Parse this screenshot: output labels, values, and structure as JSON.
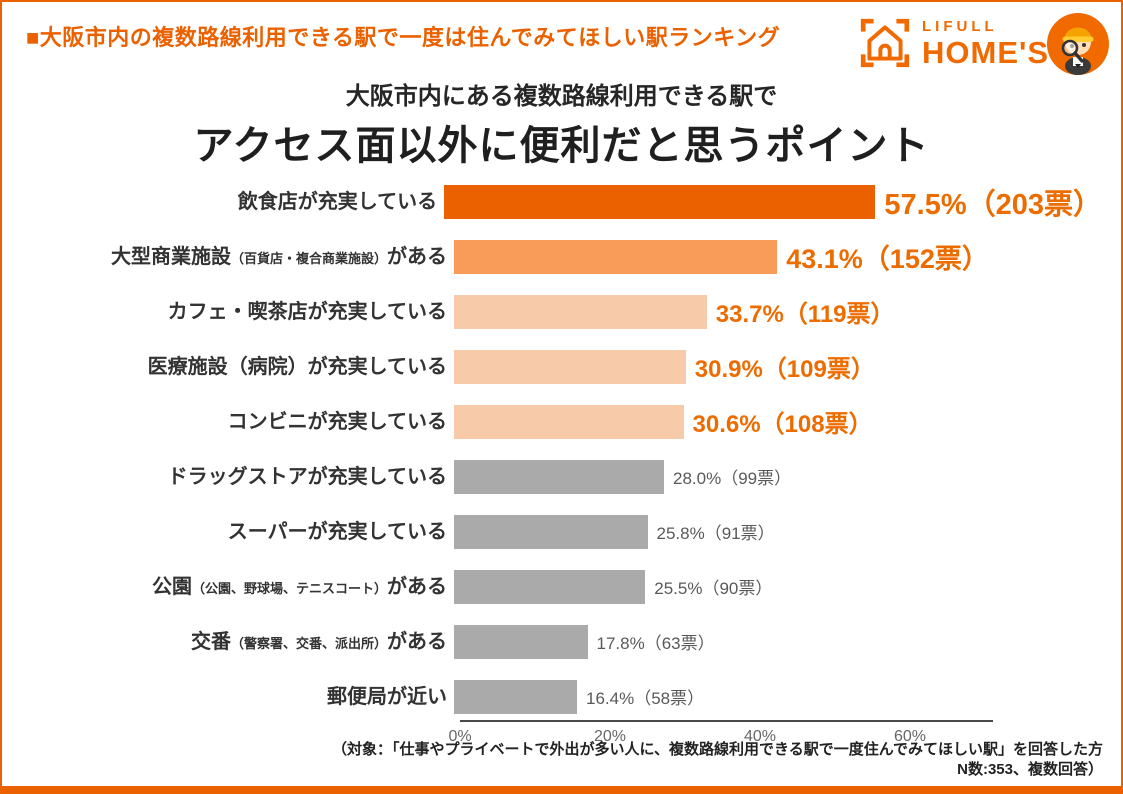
{
  "page": {
    "banner": "■大阪市内の複数路線利用できる駅で一度は住んでみてほしい駅ランキング",
    "logo": {
      "brand_top": "LIFULL",
      "brand_bottom": "HOME'S"
    },
    "title_line1": "大阪市内にある複数路線利用できる駅で",
    "title_line2": "アクセス面以外に便利だと思うポイント",
    "footer_line1": "（対象：「仕事やプライベートで外出が多い人に、複数路線利用できる駅で一度住んでみてほしい駅」を回答した方",
    "footer_line2": "N数:353、複数回答）"
  },
  "colors": {
    "accent_orange": "#EB6100",
    "bar_rank1": "#EB6100",
    "bar_rank2": "#F99B59",
    "bar_rank3_5": "#F7CBA9",
    "bar_other": "#AAAAAA",
    "value_orange": "#ED6C00",
    "value_gray": "#595959",
    "label_dark": "#333333"
  },
  "chart_data": {
    "type": "bar",
    "orientation": "horizontal",
    "title": "大阪市内にある複数路線利用できる駅で アクセス面以外に便利だと思うポイント",
    "categories": [
      "飲食店が充実している",
      "大型商業施設（百貨店・複合商業施設）がある",
      "カフェ・喫茶店が充実している",
      "医療施設（病院）が充実している",
      "コンビニが充実している",
      "ドラッグストアが充実している",
      "スーパーが充実している",
      "公園（公園、野球場、テニスコート）がある",
      "交番（警察署、交番、派出所）がある",
      "郵便局が近い"
    ],
    "values": [
      57.5,
      43.1,
      33.7,
      30.9,
      30.6,
      28.0,
      25.8,
      25.5,
      17.8,
      16.4
    ],
    "votes": [
      203,
      152,
      119,
      109,
      108,
      99,
      91,
      90,
      63,
      58
    ],
    "x_ticks": [
      "0%",
      "20%",
      "40%",
      "60%"
    ],
    "x_tick_values": [
      0,
      20,
      40,
      60
    ],
    "xlim": [
      0,
      71
    ],
    "grid": false,
    "legend": "none",
    "rows": [
      {
        "label_main": "飲食店が充実している",
        "label_note": "",
        "label_suffix": "",
        "pct": 57.5,
        "value_label": "57.5%（203票）",
        "tier": 1
      },
      {
        "label_main": "大型商業施設",
        "label_note": "（百貨店・複合商業施設）",
        "label_suffix": "がある",
        "pct": 43.1,
        "value_label": "43.1%（152票）",
        "tier": 2
      },
      {
        "label_main": "カフェ・喫茶店が充実している",
        "label_note": "",
        "label_suffix": "",
        "pct": 33.7,
        "value_label": "33.7%（119票）",
        "tier": 3
      },
      {
        "label_main": "医療施設（病院）が充実している",
        "label_note": "",
        "label_suffix": "",
        "pct": 30.9,
        "value_label": "30.9%（109票）",
        "tier": 3
      },
      {
        "label_main": "コンビニが充実している",
        "label_note": "",
        "label_suffix": "",
        "pct": 30.6,
        "value_label": "30.6%（108票）",
        "tier": 3
      },
      {
        "label_main": "ドラッグストアが充実している",
        "label_note": "",
        "label_suffix": "",
        "pct": 28.0,
        "value_label": "28.0%（99票）",
        "tier": 4
      },
      {
        "label_main": "スーパーが充実している",
        "label_note": "",
        "label_suffix": "",
        "pct": 25.8,
        "value_label": "25.8%（91票）",
        "tier": 4
      },
      {
        "label_main": "公園",
        "label_note": "（公園、野球場、テニスコート）",
        "label_suffix": "がある",
        "pct": 25.5,
        "value_label": "25.5%（90票）",
        "tier": 4
      },
      {
        "label_main": "交番",
        "label_note": "（警察署、交番、派出所）",
        "label_suffix": "がある",
        "pct": 17.8,
        "value_label": "17.8%（63票）",
        "tier": 4
      },
      {
        "label_main": "郵便局が近い",
        "label_note": "",
        "label_suffix": "",
        "pct": 16.4,
        "value_label": "16.4%（58票）",
        "tier": 4
      }
    ]
  }
}
